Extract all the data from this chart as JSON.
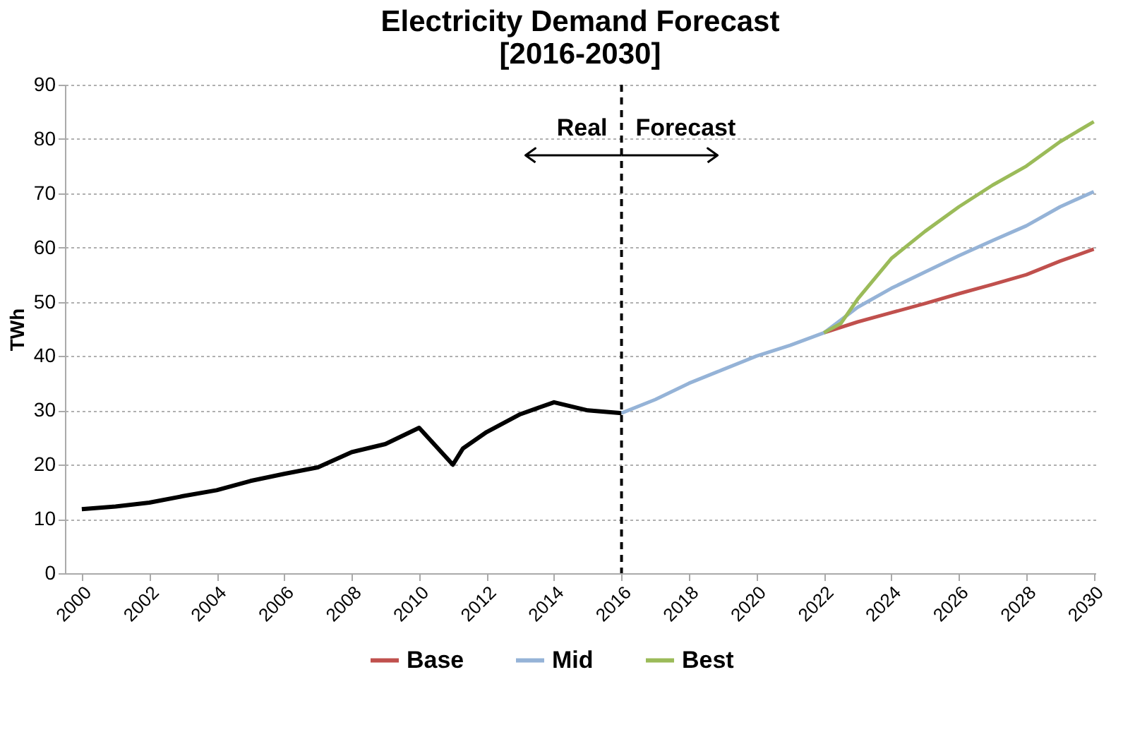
{
  "chart_data": {
    "type": "line",
    "title": "Electricity Demand Forecast\n[2016-2030]",
    "ylabel": "TWh",
    "xlim": [
      1999.5,
      2030.05
    ],
    "xticks": [
      2000,
      2002,
      2004,
      2006,
      2008,
      2010,
      2012,
      2014,
      2016,
      2018,
      2020,
      2022,
      2024,
      2026,
      2028,
      2030
    ],
    "ylim": [
      0,
      90
    ],
    "yticks": [
      0,
      10,
      20,
      30,
      40,
      50,
      60,
      70,
      80,
      90
    ],
    "grid": "y",
    "legend": "bottom",
    "marker": "none",
    "line_style": "solid",
    "series": [
      {
        "color": "#000000",
        "x": [
          2000,
          2001,
          2002,
          2003,
          2004,
          2005,
          2006,
          2007,
          2008,
          2009,
          2010,
          2011,
          2011.3,
          2012,
          2013,
          2014,
          2015,
          2016
        ],
        "values": [
          11.8,
          12.3,
          13.0,
          14.2,
          15.3,
          17.0,
          18.3,
          19.5,
          22.3,
          23.8,
          26.8,
          20.0,
          23.0,
          26.0,
          29.3,
          31.5,
          30.0,
          29.5
        ]
      },
      {
        "name": "Base",
        "color": "#c0504d",
        "x": [
          2022,
          2023,
          2024,
          2025,
          2026,
          2027,
          2028,
          2029,
          2030
        ],
        "values": [
          44.3,
          46.3,
          48.0,
          49.7,
          51.5,
          53.2,
          55.0,
          57.5,
          59.7
        ]
      },
      {
        "name": "Mid",
        "color": "#95b3d7",
        "x": [
          2016,
          2017,
          2018,
          2019,
          2020,
          2021,
          2022,
          2023,
          2024,
          2025,
          2026,
          2027,
          2028,
          2029,
          2030
        ],
        "values": [
          29.5,
          32.0,
          35.0,
          37.5,
          40.0,
          42.0,
          44.3,
          49.0,
          52.5,
          55.5,
          58.5,
          61.3,
          64.0,
          67.5,
          70.3
        ]
      },
      {
        "name": "Best",
        "color": "#9bbb59",
        "x": [
          2022,
          2022.5,
          2023,
          2024,
          2025,
          2026,
          2027,
          2028,
          2029,
          2030
        ],
        "values": [
          44.3,
          46.0,
          50.5,
          58.0,
          63.0,
          67.5,
          71.5,
          75.0,
          79.5,
          83.2
        ]
      }
    ],
    "ref_lines": [
      {
        "axis": "x",
        "value": 2016,
        "color": "#000000",
        "line_style": "dashed"
      }
    ],
    "annotations": [
      "Real",
      "Forecast"
    ]
  }
}
